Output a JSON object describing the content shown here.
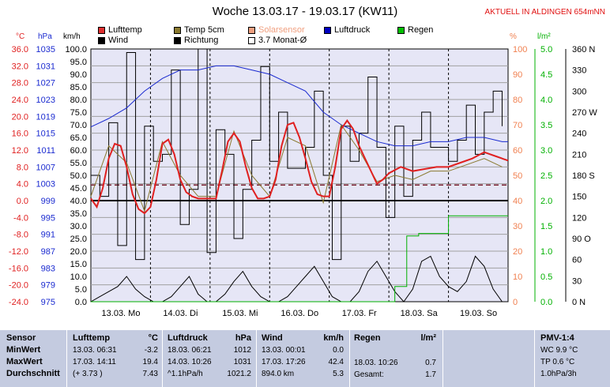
{
  "header": {
    "title": "Woche 13.03.17 - 19.03.17 (KW11)",
    "station": "AKTUELL IN ALDINGEN 654mNN"
  },
  "legend": {
    "row1": [
      {
        "label": "Lufttemp",
        "color": "#e03030"
      },
      {
        "label": "Temp 5cm",
        "color": "#8a7a30"
      },
      {
        "label": "Solarsensor",
        "color": "#f0a080"
      },
      {
        "label": "Luftdruck",
        "color": "#0000c0"
      },
      {
        "label": "Regen",
        "color": "#00c000"
      }
    ],
    "row2": [
      {
        "label": "Wind",
        "color": "#000000"
      },
      {
        "label": "Richtung",
        "color": "#000000"
      },
      {
        "label": "3.7 Monat-Ø",
        "color": "#ffffff"
      }
    ]
  },
  "axis_units": {
    "temp": "°C",
    "pressure": "hPa",
    "wind": "km/h",
    "solar": "%",
    "rain": "l/m²"
  },
  "colors": {
    "temp": "#e02020",
    "pressure": "#1a2ad0",
    "wind_axis": "#000000",
    "solar": "#f08050",
    "rain": "#00b000",
    "panel": "#e6e6f6",
    "table_bg": "#c4cbe0",
    "monthavg": "#7a2030"
  },
  "chart_data": {
    "type": "line",
    "ylim_temp": [
      -24.0,
      36.0
    ],
    "temp_ticks": [
      "36.0",
      "32.0",
      "28.0",
      "24.0",
      "20.0",
      "16.0",
      "12.0",
      "8.0",
      "4.0",
      "0.0",
      "-4.0",
      "-8.0",
      "-12.0",
      "-16.0",
      "-20.0",
      "-24.0"
    ],
    "pressure_ticks": [
      "1035",
      "1031",
      "1027",
      "1023",
      "1019",
      "1015",
      "1011",
      "1007",
      "1003",
      "999",
      "995",
      "991",
      "987",
      "983",
      "979",
      "975"
    ],
    "wind_ticks": [
      "100.0",
      "95.0",
      "90.0",
      "85.0",
      "80.0",
      "75.0",
      "70.0",
      "65.0",
      "60.0",
      "55.0",
      "50.0",
      "45.0",
      "40.0",
      "35.0",
      "30.0",
      "25.0",
      "20.0",
      "15.0",
      "10.0",
      "5.0",
      "0.0"
    ],
    "solar_ticks": [
      "100",
      "90",
      "80",
      "70",
      "60",
      "50",
      "40",
      "30",
      "20",
      "10",
      "0"
    ],
    "rain_ticks": [
      "5.0",
      "4.5",
      "4.0",
      "3.5",
      "3.0",
      "2.5",
      "2.0",
      "1.5",
      "1.0",
      "0.5",
      "0.0"
    ],
    "dir_ticks": [
      "360 N",
      "330",
      "300",
      "270 W",
      "240",
      "210",
      "180 S",
      "150",
      "120",
      "90 O",
      "60",
      "30",
      "0 N"
    ],
    "x_ticks": [
      "13.03.  Mo",
      "14.03.  Di",
      "15.03.  Mi",
      "16.03.  Do",
      "17.03.  Fr",
      "18.03.  Sa",
      "19.03.  So"
    ],
    "month_avg_temp": 3.7,
    "series": [
      {
        "name": "Lufttemp",
        "x": [
          0,
          0.1,
          0.2,
          0.3,
          0.4,
          0.5,
          0.6,
          0.7,
          0.8,
          0.9,
          1.0,
          1.1,
          1.2,
          1.3,
          1.4,
          1.5,
          1.6,
          1.7,
          1.8,
          1.9,
          2.0,
          2.1,
          2.2,
          2.3,
          2.4,
          2.5,
          2.6,
          2.7,
          2.8,
          2.9,
          3.0,
          3.1,
          3.2,
          3.3,
          3.4,
          3.5,
          3.6,
          3.7,
          3.8,
          3.9,
          4.0,
          4.1,
          4.2,
          4.3,
          4.4,
          4.5,
          4.6,
          4.7,
          4.8,
          4.9,
          5.0,
          5.2,
          5.4,
          5.6,
          5.8,
          6.0,
          6.2,
          6.4,
          6.6,
          6.8,
          7.0
        ],
        "y": [
          0.5,
          -1.5,
          3.0,
          10.0,
          13.5,
          13.0,
          8.0,
          1.5,
          -2.0,
          -3.0,
          -1.5,
          5.0,
          13.5,
          14.5,
          11.0,
          5.0,
          2.0,
          1.0,
          0.5,
          0.5,
          0.5,
          0.5,
          7.0,
          14.0,
          16.0,
          14.0,
          8.0,
          3.0,
          0.5,
          0.5,
          1.0,
          5.0,
          13.0,
          18.0,
          18.5,
          15.0,
          10.0,
          4.5,
          1.5,
          1.0,
          1.0,
          8.0,
          17.0,
          19.0,
          17.0,
          13.0,
          10.0,
          7.0,
          4.0,
          5.0,
          6.5,
          8.0,
          7.0,
          7.5,
          8.0,
          8.0,
          9.0,
          10.0,
          11.5,
          10.5,
          9.5
        ]
      },
      {
        "name": "Temp 5cm",
        "x": [
          0,
          0.3,
          0.6,
          0.9,
          1.2,
          1.5,
          1.8,
          2.1,
          2.4,
          2.7,
          3.0,
          3.3,
          3.6,
          3.9,
          4.2,
          4.5,
          4.8,
          5.1,
          5.4,
          5.7,
          6.0,
          6.3,
          6.6,
          6.9
        ],
        "y": [
          1.0,
          13.0,
          9.0,
          -2.5,
          14.0,
          6.0,
          1.0,
          1.0,
          16.5,
          6.0,
          1.0,
          15.0,
          13.0,
          -0.5,
          18.0,
          12.0,
          4.5,
          6.0,
          5.0,
          7.0,
          7.0,
          8.5,
          10.0,
          8.0
        ]
      },
      {
        "name": "Luftdruck",
        "x": [
          0,
          0.3,
          0.6,
          0.9,
          1.2,
          1.5,
          1.8,
          2.1,
          2.4,
          2.7,
          3.0,
          3.3,
          3.6,
          3.9,
          4.2,
          4.5,
          4.8,
          5.1,
          5.4,
          5.7,
          6.0,
          6.3,
          6.6,
          6.9,
          7.0
        ],
        "y": [
          1016.5,
          1018.5,
          1021,
          1025,
          1028,
          1030,
          1030,
          1031,
          1031,
          1030,
          1029,
          1027,
          1025,
          1020,
          1017,
          1015,
          1013,
          1012,
          1012,
          1013,
          1013,
          1014,
          1014,
          1013,
          1013
        ]
      },
      {
        "name": "Wind",
        "x": [
          0,
          0.15,
          0.3,
          0.45,
          0.6,
          0.75,
          0.9,
          1.05,
          1.2,
          1.35,
          1.5,
          1.65,
          1.8,
          1.95,
          2.1,
          2.25,
          2.4,
          2.55,
          2.7,
          2.85,
          3.0,
          3.15,
          3.3,
          3.45,
          3.6,
          3.75,
          3.9,
          4.05,
          4.2,
          4.35,
          4.5,
          4.65,
          4.8,
          4.95,
          5.1,
          5.25,
          5.4,
          5.55,
          5.7,
          5.85,
          6.0,
          6.15,
          6.3,
          6.45,
          6.6,
          6.75,
          6.9
        ],
        "y": [
          0,
          2,
          4,
          6,
          10,
          5,
          2,
          0,
          0,
          2,
          6,
          10,
          3,
          0,
          0,
          3,
          8,
          12,
          6,
          2,
          0,
          0,
          2,
          6,
          10,
          14,
          8,
          2,
          0,
          0,
          4,
          12,
          16,
          10,
          4,
          0,
          5,
          16,
          18,
          10,
          6,
          4,
          8,
          18,
          14,
          5,
          0
        ]
      },
      {
        "name": "Regen",
        "x": [
          0,
          4.9,
          5.0,
          5.1,
          5.3,
          5.5,
          5.55,
          5.9,
          6.0,
          6.1,
          7.0
        ],
        "y": [
          0,
          0,
          0,
          0.3,
          1.3,
          1.35,
          1.35,
          1.35,
          1.7,
          1.7,
          1.7
        ]
      },
      {
        "name": "Richtung",
        "x": [
          0,
          0.15,
          0.3,
          0.45,
          0.6,
          0.75,
          0.9,
          1.05,
          1.2,
          1.35,
          1.5,
          1.65,
          1.8,
          1.95,
          2.1,
          2.25,
          2.4,
          2.55,
          2.7,
          2.85,
          3.0,
          3.15,
          3.3,
          3.45,
          3.6,
          3.75,
          3.9,
          4.05,
          4.2,
          4.35,
          4.5,
          4.65,
          4.8,
          4.95,
          5.1,
          5.25,
          5.4,
          5.55,
          5.7,
          5.85,
          6.0,
          6.15,
          6.3,
          6.45,
          6.6,
          6.75,
          6.9
        ],
        "y": [
          180,
          150,
          255,
          80,
          355,
          60,
          250,
          200,
          210,
          330,
          110,
          160,
          360,
          70,
          245,
          210,
          90,
          160,
          230,
          335,
          200,
          270,
          190,
          190,
          220,
          300,
          180,
          60,
          250,
          200,
          240,
          320,
          220,
          120,
          250,
          150,
          230,
          270,
          220,
          220,
          200,
          230,
          280,
          210,
          270,
          300,
          250
        ]
      }
    ]
  },
  "tables": {
    "sensor": {
      "header": "Sensor",
      "rows": [
        "MinWert",
        "MaxWert",
        "Durchschnitt"
      ]
    },
    "lufttemp": {
      "header": "Lufttemp",
      "unit": "°C",
      "rows": [
        {
          "a": "13.03.  06:31",
          "b": "-3.2"
        },
        {
          "a": "17.03.  14:11",
          "b": "19.4"
        },
        {
          "a": "(+ 3.73 )",
          "b": "7.43"
        }
      ]
    },
    "luftdruck": {
      "header": "Luftdruck",
      "unit": "hPa",
      "rows": [
        {
          "a": "18.03.  06:21",
          "b": "1012"
        },
        {
          "a": "14.03.  10:26",
          "b": "1031"
        },
        {
          "a": "^1.1hPa/h",
          "b": "1021.2"
        }
      ]
    },
    "wind": {
      "header": "Wind",
      "unit": "km/h",
      "rows": [
        {
          "a": "13.03.  00:01",
          "b": "0.0"
        },
        {
          "a": "17.03.  17:26",
          "b": "42.4"
        },
        {
          "a": "894.0 km",
          "b": "5.3"
        }
      ]
    },
    "regen": {
      "header": "Regen",
      "unit": "l/m²",
      "rows": [
        {
          "a": "",
          "b": ""
        },
        {
          "a": "18.03.  10:26",
          "b": "0.7"
        },
        {
          "a": "Gesamt:",
          "b": "1.7"
        }
      ]
    },
    "pmv": {
      "header": "PMV-1:4",
      "rows": [
        "WC 9.9 °C",
        "TP 0.6 °C",
        "1.0hPa/3h"
      ]
    }
  }
}
